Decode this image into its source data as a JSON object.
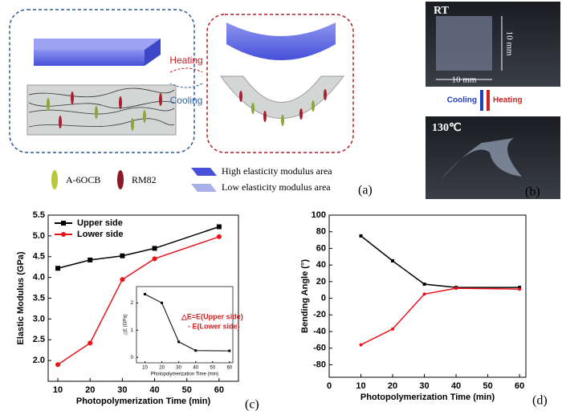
{
  "panel_a": {
    "heating": "Heating",
    "cooling": "Cooling",
    "legend": [
      "A-6OCB",
      "RM82",
      "High elasticity modulus area",
      "Low elasticity modulus area"
    ],
    "label": "(a)"
  },
  "panel_b": {
    "rt": "RT",
    "width": "10 mm",
    "height": "10 mm",
    "cooling": "Cooling",
    "heating": "Heating",
    "hot": "130℃",
    "label": "(b)"
  },
  "chart_data": [
    {
      "type": "line",
      "label": "(c)",
      "x_label": "Photopolymerization Time (min)",
      "y_label": "Elastic Modulus (GPa)",
      "x": [
        10,
        20,
        30,
        40,
        60
      ],
      "series": [
        {
          "name": "Upper side",
          "color": "#000000",
          "marker": "square",
          "values": [
            4.22,
            4.42,
            4.52,
            4.7,
            5.22
          ]
        },
        {
          "name": "Lower side",
          "color": "#e8141c",
          "marker": "circle",
          "values": [
            1.9,
            2.42,
            3.95,
            4.45,
            4.98
          ]
        }
      ],
      "xlim": [
        7,
        66
      ],
      "xticks": [
        10,
        20,
        30,
        40,
        50,
        60
      ],
      "ylim": [
        1.5,
        5.5
      ],
      "yticks": [
        {
          "value": 2,
          "label": "2.0"
        },
        2.5,
        {
          "value": 3,
          "label": "3.0"
        },
        3.5,
        {
          "value": 4,
          "label": "4.0"
        },
        4.5,
        {
          "value": 5,
          "label": "5.0"
        },
        5.5
      ],
      "legend": "upper left"
    },
    {
      "type": "line",
      "x_label": "Photopolymerization Time (min)",
      "y_label": "△E (GPa)",
      "annotation": [
        "△E=E(Upper side)",
        "- E(Lower side)"
      ],
      "x": [
        10,
        20,
        30,
        40,
        60
      ],
      "series": [
        {
          "color": "#000000",
          "marker": "square",
          "values": [
            2.32,
            2.0,
            0.57,
            0.25,
            0.24
          ]
        }
      ],
      "xlim": [
        5,
        62
      ],
      "xticks": [
        10,
        20,
        30,
        40,
        50,
        60
      ],
      "ylim": [
        -0.2,
        2.6
      ],
      "yticks": [
        0,
        1,
        2
      ]
    },
    {
      "type": "line",
      "label": "(d)",
      "x_label": "Photopolymerization Time (min)",
      "y_label": "Bending Angle (°)",
      "x": [
        10,
        20,
        30,
        40,
        60
      ],
      "series": [
        {
          "color": "#000000",
          "marker": "square",
          "values": [
            75,
            45,
            17,
            13,
            13
          ]
        },
        {
          "color": "#e8141c",
          "marker": "circle",
          "values": [
            -56,
            -37,
            5,
            12,
            11
          ]
        }
      ],
      "xlim": [
        0,
        62
      ],
      "xticks": [
        0,
        10,
        20,
        30,
        40,
        50,
        60
      ],
      "ylim": [
        -95,
        100
      ],
      "yticks": [
        -80,
        -60,
        -40,
        -20,
        0,
        20,
        40,
        60,
        80,
        100
      ]
    }
  ]
}
